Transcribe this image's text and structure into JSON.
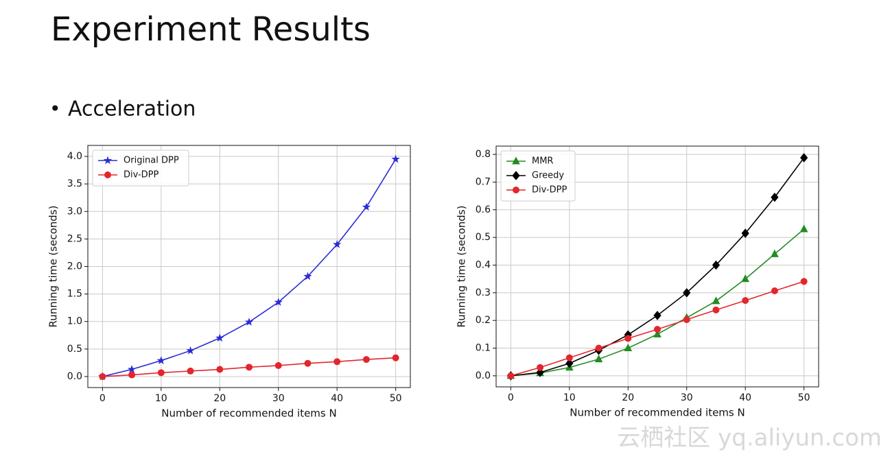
{
  "title": "Experiment Results",
  "bullet": "Acceleration",
  "watermark": "云栖社区 yq.aliyun.com",
  "chart_data": [
    {
      "type": "line",
      "xlabel": "Number of recommended items N",
      "ylabel": "Running time (seconds)",
      "x": [
        0,
        5,
        10,
        15,
        20,
        25,
        30,
        35,
        40,
        45,
        50
      ],
      "series": [
        {
          "name": "Original DPP",
          "color": "#2b2bd6",
          "marker": "star",
          "values": [
            0,
            0.13,
            0.29,
            0.47,
            0.7,
            0.99,
            1.35,
            1.82,
            2.4,
            3.08,
            3.95
          ]
        },
        {
          "name": "Div-DPP",
          "color": "#e3262d",
          "marker": "circle",
          "values": [
            0,
            0.03,
            0.07,
            0.1,
            0.13,
            0.17,
            0.2,
            0.24,
            0.27,
            0.31,
            0.34
          ]
        }
      ],
      "xlim": [
        -2.5,
        52.5
      ],
      "ylim": [
        -0.2,
        4.2
      ],
      "xticks": [
        0,
        10,
        20,
        30,
        40,
        50
      ],
      "yticks": [
        {
          "value": 0,
          "label": "0.0"
        },
        0.5,
        {
          "value": 1,
          "label": "1.0"
        },
        1.5,
        {
          "value": 2,
          "label": "2.0"
        },
        2.5,
        {
          "value": 3,
          "label": "3.0"
        },
        3.5,
        {
          "value": 4,
          "label": "4.0"
        }
      ],
      "grid": true,
      "legend": "upper left"
    },
    {
      "type": "line",
      "xlabel": "Number of recommended items N",
      "ylabel": "Running time (seconds)",
      "x": [
        0,
        5,
        10,
        15,
        20,
        25,
        30,
        35,
        40,
        45,
        50
      ],
      "series": [
        {
          "name": "MMR",
          "color": "#228b22",
          "marker": "triangle",
          "values": [
            0,
            0.01,
            0.03,
            0.06,
            0.1,
            0.15,
            0.21,
            0.27,
            0.35,
            0.44,
            0.53
          ]
        },
        {
          "name": "Greedy",
          "color": "#000000",
          "marker": "diamond",
          "values": [
            0,
            0.012,
            0.045,
            0.092,
            0.148,
            0.218,
            0.3,
            0.4,
            0.515,
            0.645,
            0.788
          ]
        },
        {
          "name": "Div-DPP",
          "color": "#e3262d",
          "marker": "circle",
          "values": [
            0,
            0.03,
            0.065,
            0.1,
            0.135,
            0.168,
            0.203,
            0.238,
            0.272,
            0.307,
            0.341
          ]
        }
      ],
      "xlim": [
        -2.5,
        52.5
      ],
      "ylim": [
        -0.04,
        0.83
      ],
      "xticks": [
        0,
        10,
        20,
        30,
        40,
        50
      ],
      "yticks": [
        {
          "value": 0,
          "label": "0.0"
        },
        0.1,
        0.2,
        0.3,
        0.4,
        0.5,
        0.6,
        0.7,
        0.8
      ],
      "grid": true,
      "legend": "upper left"
    }
  ]
}
